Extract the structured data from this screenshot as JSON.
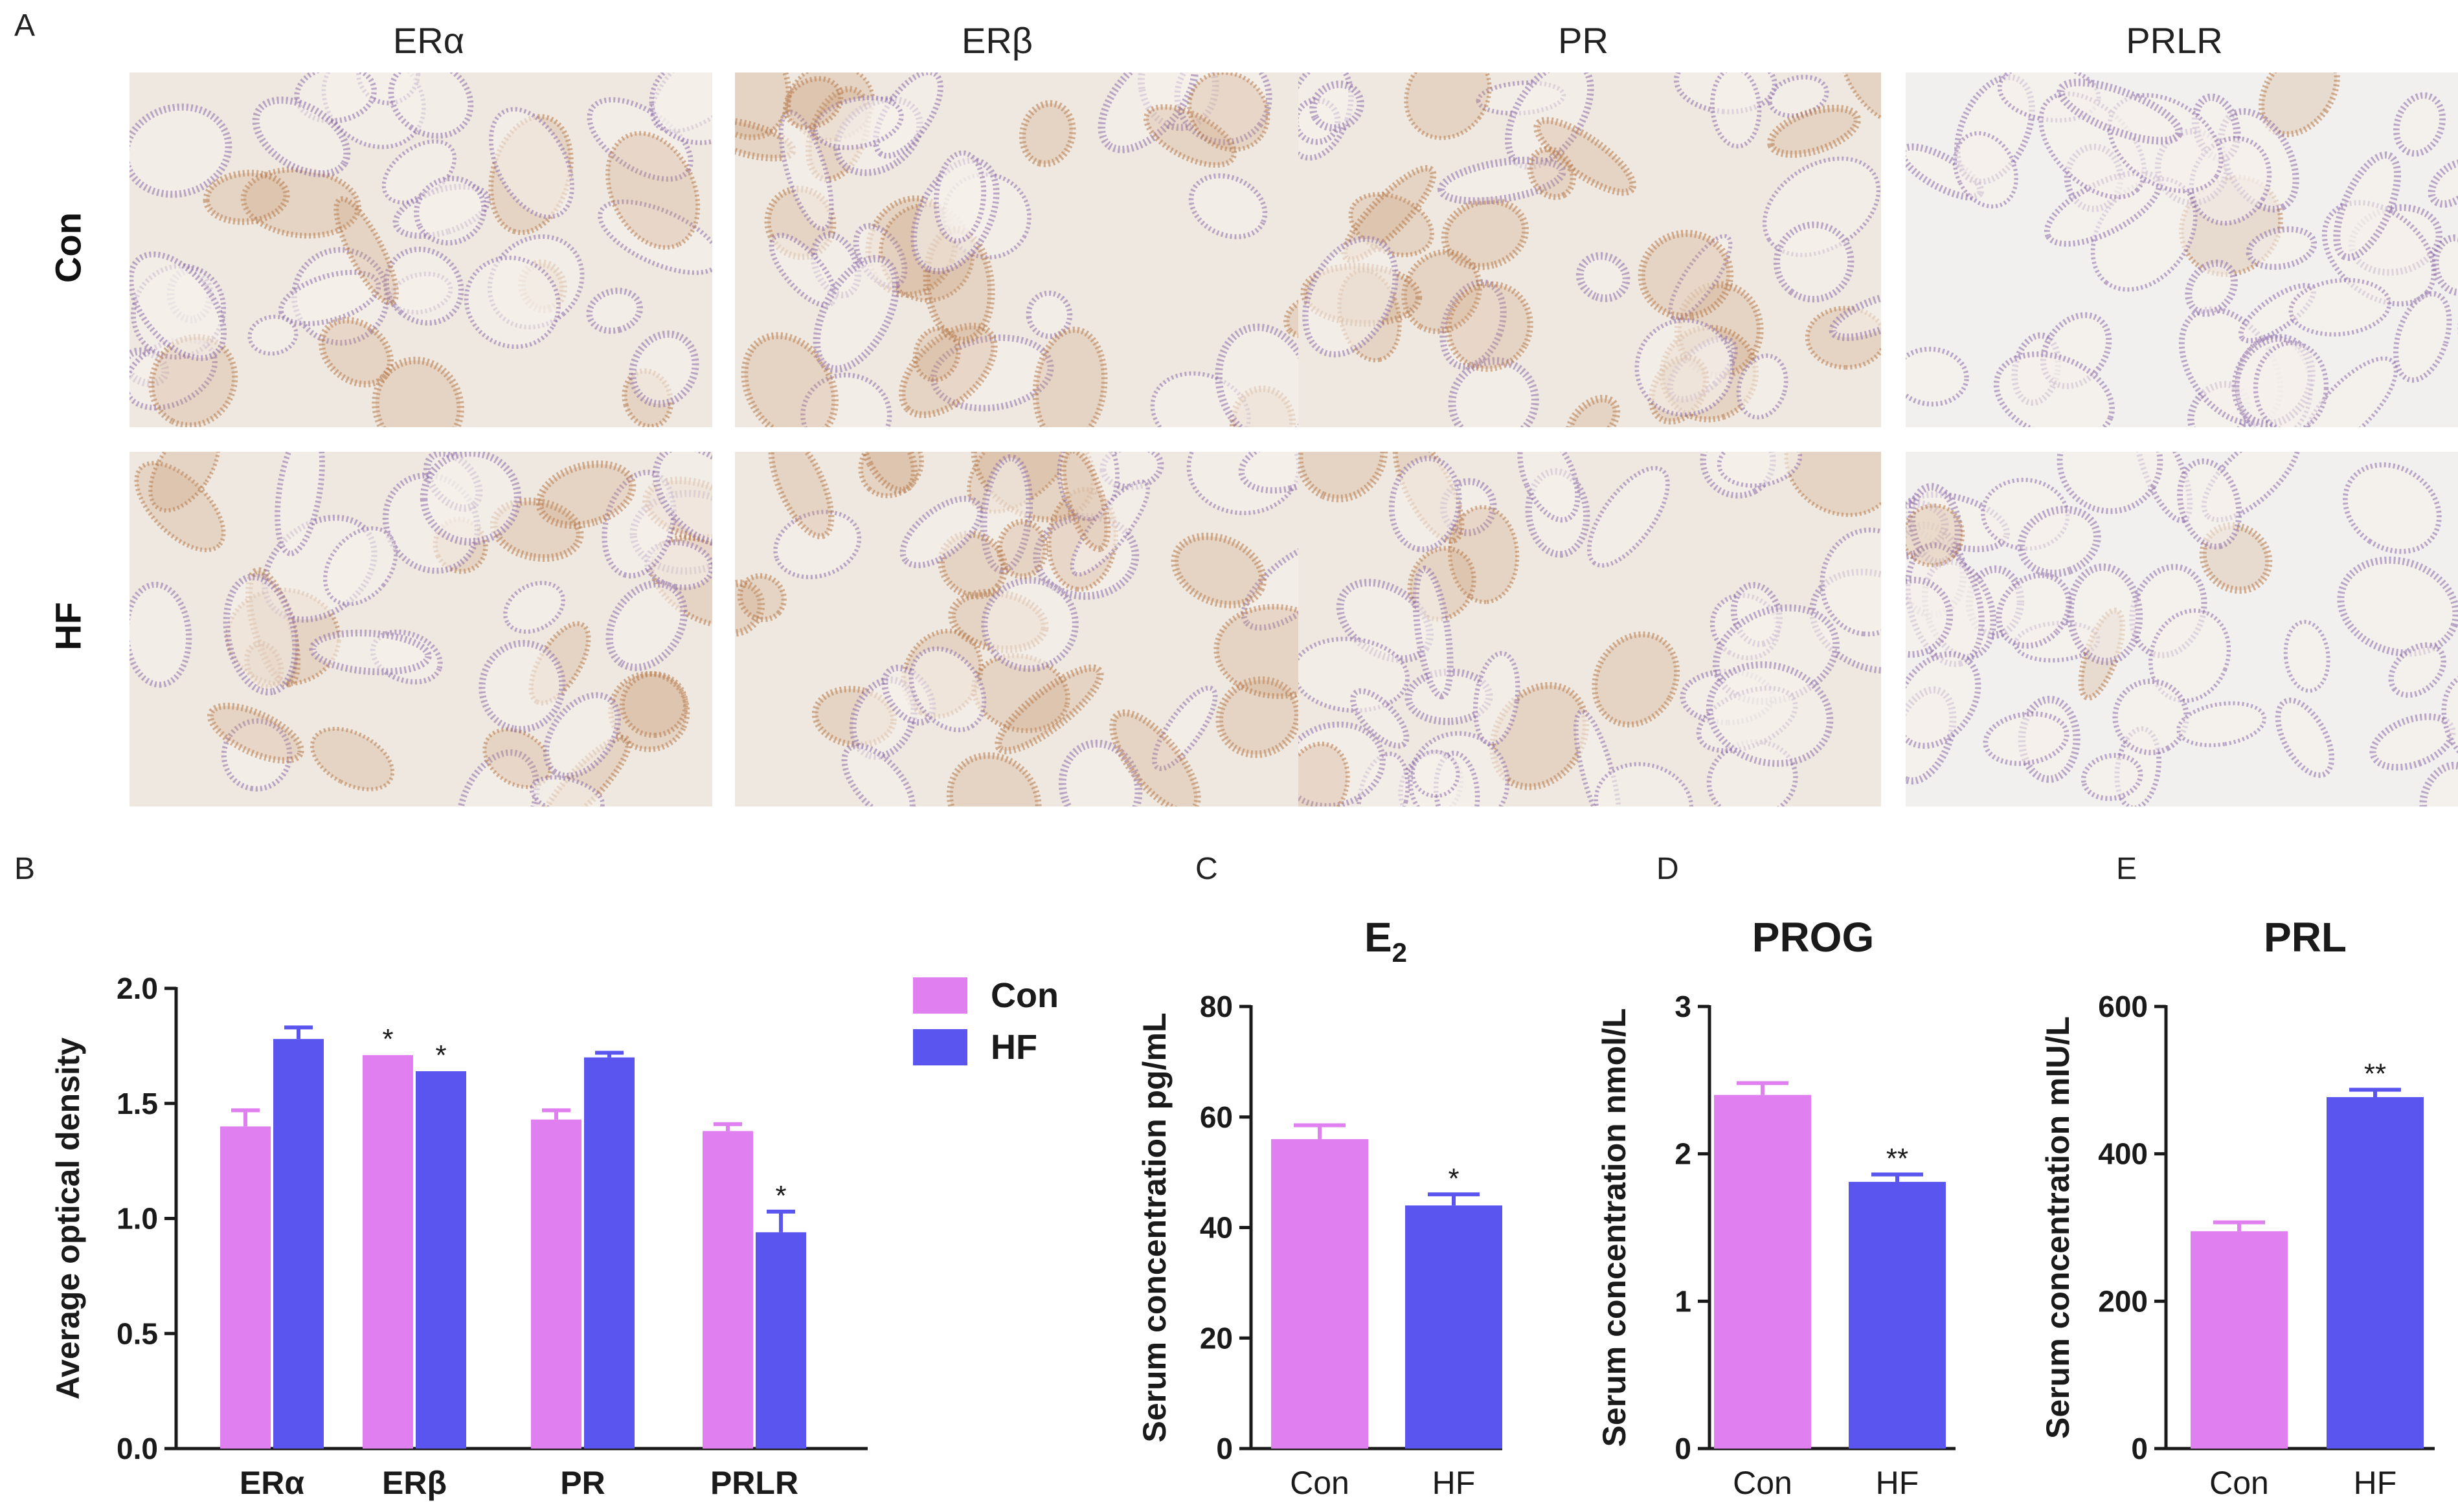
{
  "panel_labels": [
    "A",
    "B",
    "C",
    "D",
    "E"
  ],
  "panelA": {
    "columns": [
      "ERα",
      "ERβ",
      "PR",
      "PRLR"
    ],
    "rows": [
      "Con",
      "HF"
    ],
    "stain_colors": {
      "hematoxylin": "#8a6aa8",
      "dab": "#b5794a",
      "background": "#efe8e0"
    }
  },
  "colors": {
    "con": "#e07ff0",
    "hf": "#5a55ee",
    "axis": "#1a1a1a"
  },
  "chart_data": [
    {
      "id": "B",
      "type": "bar",
      "ylabel": "Average optical density",
      "ylim": [
        0,
        2.0
      ],
      "yticks": [
        "0.0",
        "0.5",
        "1.0",
        "1.5",
        "2.0"
      ],
      "categories": [
        "ERα",
        "ERβ",
        "PR",
        "PRLR"
      ],
      "legend": [
        "Con",
        "HF"
      ],
      "series": [
        {
          "name": "Con",
          "values": [
            1.4,
            1.71,
            1.43,
            1.38
          ],
          "errors": [
            0.07,
            0.0,
            0.04,
            0.03
          ]
        },
        {
          "name": "HF",
          "values": [
            1.78,
            1.64,
            1.7,
            0.94
          ],
          "errors": [
            0.05,
            0.0,
            0.02,
            0.09
          ]
        }
      ],
      "annotations": [
        "",
        "*",
        "",
        "",
        "",
        "*",
        "",
        "*"
      ]
    },
    {
      "id": "C",
      "type": "bar",
      "title": "E",
      "title_sub": "2",
      "ylabel": "Serum concentration pg/mL",
      "ylim": [
        0,
        80
      ],
      "yticks": [
        "0",
        "20",
        "40",
        "60",
        "80"
      ],
      "categories": [
        "Con",
        "HF"
      ],
      "values": [
        56,
        44
      ],
      "errors": [
        2.5,
        2.0
      ],
      "annotations": [
        "",
        "*"
      ]
    },
    {
      "id": "D",
      "type": "bar",
      "title": "PROG",
      "ylabel": "Serum concentration nmol/L",
      "ylim": [
        0,
        3
      ],
      "yticks": [
        "0",
        "1",
        "2",
        "3"
      ],
      "categories": [
        "Con",
        "HF"
      ],
      "values": [
        2.4,
        1.81
      ],
      "errors": [
        0.08,
        0.05
      ],
      "annotations": [
        "",
        "**"
      ]
    },
    {
      "id": "E",
      "type": "bar",
      "title": "PRL",
      "ylabel": "Serum concentration mIU/L",
      "ylim": [
        0,
        600
      ],
      "yticks": [
        "0",
        "200",
        "400",
        "600"
      ],
      "categories": [
        "Con",
        "HF"
      ],
      "values": [
        295,
        477
      ],
      "errors": [
        12,
        10
      ],
      "annotations": [
        "",
        "**"
      ]
    }
  ]
}
